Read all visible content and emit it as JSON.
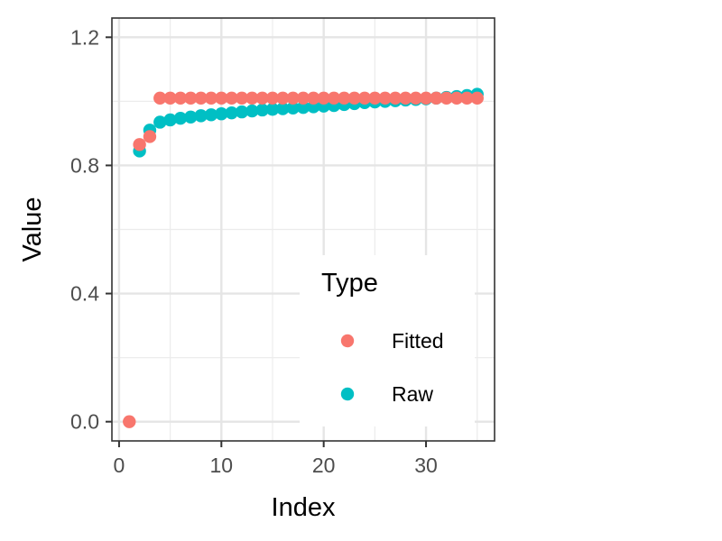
{
  "chart_data": {
    "type": "scatter",
    "title": "",
    "xlabel": "Index",
    "ylabel": "Value",
    "xlim": [
      -0.7,
      36.7
    ],
    "ylim": [
      -0.06,
      1.26
    ],
    "x_ticks": [
      0,
      10,
      20,
      30
    ],
    "x_tick_labels": [
      "0",
      "10",
      "20",
      "30"
    ],
    "x_minor_ticks": [
      5,
      15,
      25,
      35
    ],
    "y_ticks": [
      0.0,
      0.4,
      0.8,
      1.2
    ],
    "y_tick_labels": [
      "0.0",
      "0.4",
      "0.8",
      "1.2"
    ],
    "y_minor_ticks": [
      0.2,
      0.6,
      1.0
    ],
    "grid": true,
    "legend": {
      "title": "Type",
      "position": "inside-bottom-right",
      "entries": [
        "Fitted",
        "Raw"
      ]
    },
    "series": [
      {
        "name": "Raw",
        "color": "#00BFC4",
        "x": [
          2,
          3,
          4,
          5,
          6,
          7,
          8,
          9,
          10,
          11,
          12,
          13,
          14,
          15,
          16,
          17,
          18,
          19,
          20,
          21,
          22,
          23,
          24,
          25,
          26,
          27,
          28,
          29,
          30,
          31,
          32,
          33,
          34,
          35
        ],
        "y": [
          0.845,
          0.91,
          0.935,
          0.942,
          0.947,
          0.951,
          0.955,
          0.958,
          0.961,
          0.964,
          0.967,
          0.97,
          0.973,
          0.975,
          0.977,
          0.979,
          0.981,
          0.983,
          0.985,
          0.987,
          0.99,
          0.993,
          0.996,
          0.998,
          1.0,
          1.002,
          1.004,
          1.006,
          1.008,
          1.01,
          1.012,
          1.015,
          1.018,
          1.022
        ]
      },
      {
        "name": "Fitted",
        "color": "#F8766D",
        "x": [
          1,
          2,
          3,
          4,
          5,
          6,
          7,
          8,
          9,
          10,
          11,
          12,
          13,
          14,
          15,
          16,
          17,
          18,
          19,
          20,
          21,
          22,
          23,
          24,
          25,
          26,
          27,
          28,
          29,
          30,
          31,
          32,
          33,
          34,
          35
        ],
        "y": [
          0.0,
          0.865,
          0.89,
          1.01,
          1.01,
          1.01,
          1.01,
          1.01,
          1.01,
          1.01,
          1.01,
          1.01,
          1.01,
          1.01,
          1.01,
          1.01,
          1.01,
          1.01,
          1.01,
          1.01,
          1.01,
          1.01,
          1.01,
          1.01,
          1.01,
          1.01,
          1.01,
          1.01,
          1.01,
          1.01,
          1.01,
          1.01,
          1.01,
          1.01,
          1.01
        ]
      }
    ]
  }
}
